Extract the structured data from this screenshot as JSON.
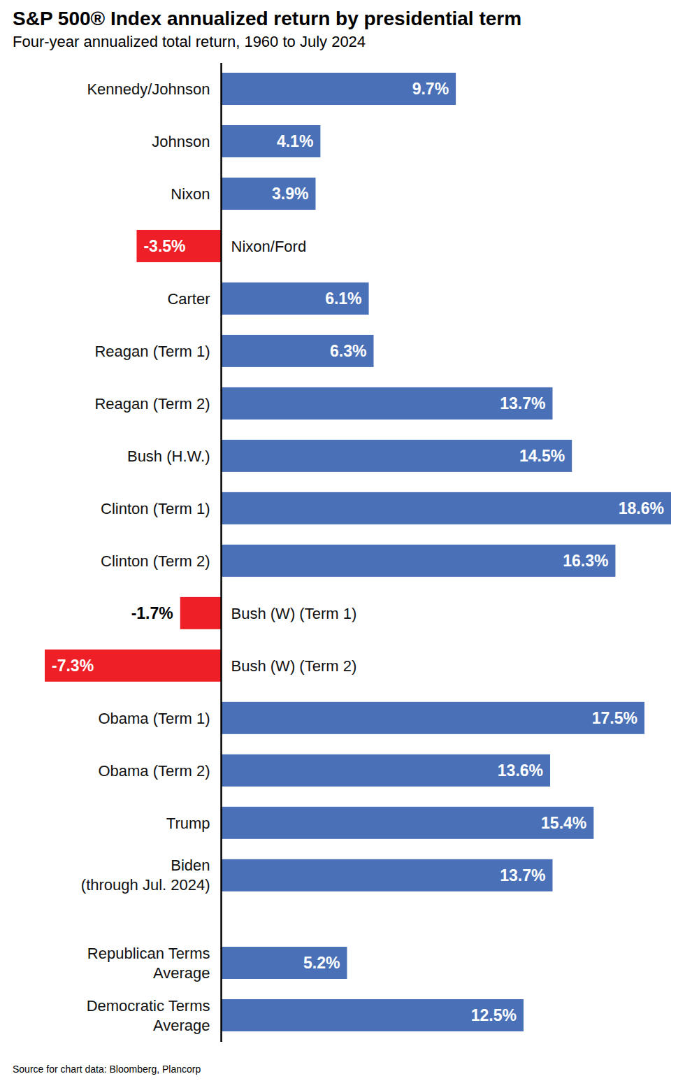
{
  "chart_data": {
    "type": "bar",
    "orientation": "horizontal",
    "title": "S&P 500® Index annualized return by presidential term",
    "subtitle": "Four-year annualized total return, 1960 to July 2024",
    "source": "Source for chart data: Bloomberg, Plancorp",
    "categories": [
      "Kennedy/Johnson",
      "Johnson",
      "Nixon",
      "Nixon/Ford",
      "Carter",
      "Reagan (Term 1)",
      "Reagan (Term 2)",
      "Bush (H.W.)",
      "Clinton (Term 1)",
      "Clinton (Term 2)",
      "Bush (W) (Term 1)",
      "Bush (W) (Term 2)",
      "Obama (Term 1)",
      "Obama (Term 2)",
      "Trump",
      "Biden\n(through Jul. 2024)",
      "Republican Terms\nAverage",
      "Democratic Terms\nAverage"
    ],
    "values": [
      9.7,
      4.1,
      3.9,
      -3.5,
      6.1,
      6.3,
      13.7,
      14.5,
      18.6,
      16.3,
      -1.7,
      -7.3,
      17.5,
      13.6,
      15.4,
      13.7,
      5.2,
      12.5
    ],
    "value_labels": [
      "9.7%",
      "4.1%",
      "3.9%",
      "-3.5%",
      "6.1%",
      "6.3%",
      "13.7%",
      "14.5%",
      "18.6%",
      "16.3%",
      "-1.7%",
      "-7.3%",
      "17.5%",
      "13.6%",
      "15.4%",
      "13.7%",
      "5.2%",
      "12.5%"
    ],
    "colors": [
      "#4a71b8",
      "#4a71b8",
      "#4a71b8",
      "#ee1f26",
      "#4a71b8",
      "#4a71b8",
      "#4a71b8",
      "#4a71b8",
      "#4a71b8",
      "#4a71b8",
      "#ee1f26",
      "#ee1f26",
      "#4a71b8",
      "#4a71b8",
      "#4a71b8",
      "#4a71b8",
      "#4a71b8",
      "#4a71b8"
    ],
    "xlim": [
      -7.3,
      18.6
    ],
    "data_labels": true,
    "tick_labels": "y"
  }
}
